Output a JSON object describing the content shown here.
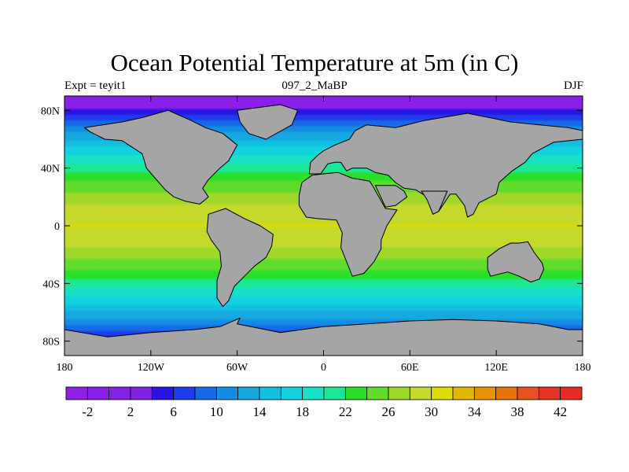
{
  "title": "Ocean Potential Temperature at 5m (in C)",
  "subtitle_left": "Expt = teyit1",
  "subtitle_center": "097_2_MaBP",
  "subtitle_right": "DJF",
  "map": {
    "projection": "cylindrical-equidistant",
    "lon_range": [
      -180,
      180
    ],
    "lat_range": [
      -90,
      90
    ],
    "lat_ticks": [
      {
        "value": 80,
        "label": "80N"
      },
      {
        "value": 40,
        "label": "40N"
      },
      {
        "value": 0,
        "label": "0"
      },
      {
        "value": -40,
        "label": "40S"
      },
      {
        "value": -80,
        "label": "80S"
      }
    ],
    "lon_ticks": [
      {
        "value": -180,
        "label": "180"
      },
      {
        "value": -120,
        "label": "120W"
      },
      {
        "value": -60,
        "label": "60W"
      },
      {
        "value": 0,
        "label": "0"
      },
      {
        "value": 60,
        "label": "60E"
      },
      {
        "value": 120,
        "label": "120E"
      },
      {
        "value": 180,
        "label": "180"
      }
    ],
    "land_color": "#a5a5a5",
    "continents": [
      {
        "name": "north-america",
        "points": [
          [
            -126,
            75
          ],
          [
            -108,
            80
          ],
          [
            -92,
            73
          ],
          [
            -82,
            68
          ],
          [
            -70,
            64
          ],
          [
            -60,
            56
          ],
          [
            -66,
            45
          ],
          [
            -72,
            40
          ],
          [
            -80,
            32
          ],
          [
            -84,
            26
          ],
          [
            -80,
            20
          ],
          [
            -86,
            15
          ],
          [
            -96,
            17
          ],
          [
            -104,
            20
          ],
          [
            -110,
            25
          ],
          [
            -117,
            33
          ],
          [
            -123,
            40
          ],
          [
            -126,
            50
          ],
          [
            -140,
            59
          ],
          [
            -152,
            60
          ],
          [
            -162,
            65
          ],
          [
            -166,
            68
          ],
          [
            -140,
            72
          ]
        ]
      },
      {
        "name": "greenland",
        "points": [
          [
            -60,
            80
          ],
          [
            -30,
            84
          ],
          [
            -18,
            80
          ],
          [
            -22,
            70
          ],
          [
            -40,
            60
          ],
          [
            -52,
            64
          ],
          [
            -58,
            72
          ]
        ]
      },
      {
        "name": "south-america",
        "points": [
          [
            -80,
            8
          ],
          [
            -68,
            12
          ],
          [
            -55,
            5
          ],
          [
            -44,
            0
          ],
          [
            -35,
            -6
          ],
          [
            -36,
            -14
          ],
          [
            -40,
            -22
          ],
          [
            -48,
            -28
          ],
          [
            -55,
            -35
          ],
          [
            -62,
            -42
          ],
          [
            -66,
            -52
          ],
          [
            -70,
            -56
          ],
          [
            -74,
            -50
          ],
          [
            -74,
            -38
          ],
          [
            -71,
            -28
          ],
          [
            -72,
            -18
          ],
          [
            -78,
            -10
          ],
          [
            -81,
            -4
          ]
        ]
      },
      {
        "name": "eurasia",
        "points": [
          [
            -10,
            36
          ],
          [
            -9,
            44
          ],
          [
            -5,
            48
          ],
          [
            0,
            52
          ],
          [
            8,
            56
          ],
          [
            18,
            60
          ],
          [
            22,
            66
          ],
          [
            30,
            70
          ],
          [
            50,
            68
          ],
          [
            70,
            73
          ],
          [
            100,
            78
          ],
          [
            130,
            72
          ],
          [
            150,
            70
          ],
          [
            170,
            68
          ],
          [
            180,
            66
          ],
          [
            180,
            60
          ],
          [
            160,
            58
          ],
          [
            145,
            50
          ],
          [
            140,
            44
          ],
          [
            131,
            38
          ],
          [
            122,
            30
          ],
          [
            120,
            22
          ],
          [
            108,
            16
          ],
          [
            104,
            8
          ],
          [
            100,
            6
          ],
          [
            98,
            14
          ],
          [
            92,
            22
          ],
          [
            88,
            22
          ],
          [
            80,
            10
          ],
          [
            76,
            8
          ],
          [
            72,
            20
          ],
          [
            64,
            25
          ],
          [
            56,
            26
          ],
          [
            50,
            30
          ],
          [
            45,
            35
          ],
          [
            36,
            37
          ],
          [
            30,
            40
          ],
          [
            26,
            40
          ],
          [
            20,
            40
          ],
          [
            16,
            38
          ],
          [
            12,
            44
          ],
          [
            8,
            44
          ],
          [
            3,
            43
          ],
          [
            -2,
            36
          ]
        ]
      },
      {
        "name": "africa",
        "points": [
          [
            -17,
            21
          ],
          [
            -15,
            30
          ],
          [
            -8,
            35
          ],
          [
            0,
            36
          ],
          [
            10,
            37
          ],
          [
            20,
            33
          ],
          [
            32,
            31
          ],
          [
            34,
            28
          ],
          [
            43,
            12
          ],
          [
            51,
            11
          ],
          [
            44,
            0
          ],
          [
            40,
            -10
          ],
          [
            40,
            -16
          ],
          [
            35,
            -25
          ],
          [
            28,
            -33
          ],
          [
            20,
            -35
          ],
          [
            18,
            -30
          ],
          [
            12,
            -15
          ],
          [
            13,
            -5
          ],
          [
            9,
            4
          ],
          [
            -5,
            5
          ],
          [
            -12,
            6
          ],
          [
            -17,
            14
          ]
        ]
      },
      {
        "name": "arabia",
        "points": [
          [
            36,
            28
          ],
          [
            50,
            28
          ],
          [
            56,
            24
          ],
          [
            58,
            20
          ],
          [
            50,
            14
          ],
          [
            43,
            13
          ]
        ]
      },
      {
        "name": "india",
        "points": [
          [
            68,
            24
          ],
          [
            86,
            24
          ],
          [
            80,
            10
          ],
          [
            76,
            8
          ],
          [
            72,
            18
          ]
        ]
      },
      {
        "name": "australia",
        "points": [
          [
            114,
            -22
          ],
          [
            122,
            -16
          ],
          [
            130,
            -12
          ],
          [
            136,
            -12
          ],
          [
            142,
            -11
          ],
          [
            146,
            -18
          ],
          [
            152,
            -26
          ],
          [
            153,
            -30
          ],
          [
            150,
            -37
          ],
          [
            144,
            -39
          ],
          [
            136,
            -35
          ],
          [
            128,
            -32
          ],
          [
            116,
            -35
          ],
          [
            114,
            -30
          ]
        ]
      },
      {
        "name": "antarctica",
        "points": [
          [
            -180,
            -72
          ],
          [
            -150,
            -77
          ],
          [
            -120,
            -74
          ],
          [
            -90,
            -72
          ],
          [
            -72,
            -70
          ],
          [
            -58,
            -64
          ],
          [
            -60,
            -68
          ],
          [
            -30,
            -74
          ],
          [
            0,
            -70
          ],
          [
            30,
            -68
          ],
          [
            60,
            -66
          ],
          [
            90,
            -65
          ],
          [
            120,
            -66
          ],
          [
            150,
            -68
          ],
          [
            170,
            -72
          ],
          [
            180,
            -72
          ],
          [
            180,
            -90
          ],
          [
            -180,
            -90
          ]
        ]
      }
    ]
  },
  "colorbar": {
    "levels": [
      -4,
      -2,
      0,
      2,
      4,
      6,
      8,
      10,
      12,
      14,
      16,
      18,
      20,
      22,
      24,
      26,
      28,
      30,
      32,
      34,
      36,
      38,
      40,
      42,
      44
    ],
    "labels": [
      "-2",
      "2",
      "6",
      "10",
      "14",
      "18",
      "22",
      "26",
      "30",
      "34",
      "38",
      "42"
    ],
    "colors": [
      "#8f1fe3",
      "#8a20e8",
      "#8222e2",
      "#7d24de",
      "#2a14e2",
      "#1e3cec",
      "#1769e8",
      "#138ce3",
      "#17a8e0",
      "#11bfe0",
      "#13d1de",
      "#17e0c6",
      "#1ce796",
      "#2ade2c",
      "#62dc2c",
      "#9dd82b",
      "#c5d92d",
      "#dcdc00",
      "#e2b700",
      "#e59400",
      "#e57108",
      "#e75222",
      "#e53322",
      "#e52b27"
    ]
  }
}
